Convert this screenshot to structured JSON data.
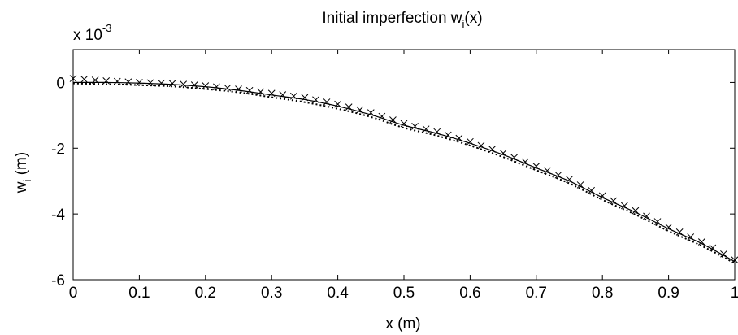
{
  "chart_data": {
    "type": "line",
    "title_main": "Initial imperfection w",
    "title_sub": "i",
    "title_tail": "(x)",
    "xlabel": "x (m)",
    "ylabel_main": "w",
    "ylabel_sub": "i",
    "ylabel_tail": " (m)",
    "exponent_base": "x 10",
    "exponent_power": "-3",
    "xlim": [
      0,
      1
    ],
    "ylim": [
      -6,
      1
    ],
    "x_ticks": [
      "0",
      "0.1",
      "0.2",
      "0.3",
      "0.4",
      "0.5",
      "0.6",
      "0.7",
      "0.8",
      "0.9",
      "1"
    ],
    "y_ticks": [
      "0",
      "-2",
      "-4",
      "-6"
    ],
    "y_tick_values": [
      0,
      -2,
      -4,
      -6
    ],
    "grid": false,
    "colors": {
      "lines": "#000000",
      "axes": "#000000",
      "background": "#ffffff"
    },
    "series": [
      {
        "style": "solid",
        "x": [
          0,
          0.05,
          0.1,
          0.15,
          0.2,
          0.25,
          0.3,
          0.35,
          0.4,
          0.45,
          0.5,
          0.55,
          0.6,
          0.65,
          0.7,
          0.75,
          0.8,
          0.85,
          0.9,
          0.95,
          1.0
        ],
        "y": [
          0.0,
          0.0,
          -0.02,
          -0.06,
          -0.13,
          -0.24,
          -0.38,
          -0.52,
          -0.72,
          -0.98,
          -1.3,
          -1.55,
          -1.85,
          -2.2,
          -2.6,
          -3.0,
          -3.5,
          -3.95,
          -4.45,
          -4.9,
          -5.45
        ]
      },
      {
        "style": "cross-markers",
        "x": [
          0,
          0.05,
          0.1,
          0.15,
          0.2,
          0.25,
          0.3,
          0.35,
          0.4,
          0.45,
          0.5,
          0.55,
          0.6,
          0.65,
          0.7,
          0.75,
          0.8,
          0.85,
          0.9,
          0.95,
          1.0
        ],
        "y": [
          0.12,
          0.05,
          0.0,
          -0.03,
          -0.1,
          -0.2,
          -0.33,
          -0.46,
          -0.66,
          -0.92,
          -1.25,
          -1.5,
          -1.8,
          -2.15,
          -2.55,
          -2.95,
          -3.45,
          -3.9,
          -4.4,
          -4.85,
          -5.4
        ]
      },
      {
        "style": "dotted",
        "x": [
          0,
          0.05,
          0.1,
          0.15,
          0.2,
          0.25,
          0.3,
          0.35,
          0.4,
          0.45,
          0.5,
          0.55,
          0.6,
          0.65,
          0.7,
          0.75,
          0.8,
          0.85,
          0.9,
          0.95,
          1.0
        ],
        "y": [
          -0.03,
          -0.05,
          -0.08,
          -0.12,
          -0.2,
          -0.3,
          -0.45,
          -0.6,
          -0.8,
          -1.05,
          -1.38,
          -1.62,
          -1.92,
          -2.27,
          -2.67,
          -3.07,
          -3.57,
          -4.02,
          -4.52,
          -4.97,
          -5.5
        ]
      }
    ]
  }
}
